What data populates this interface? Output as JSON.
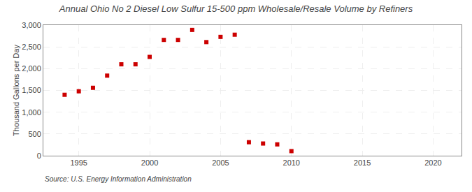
{
  "chart_data": {
    "type": "scatter",
    "title": "Annual Ohio No 2 Diesel Low Sulfur 15-500 ppm Wholesale/Resale Volume by Refiners",
    "ylabel": "Thousand Gallons per Day",
    "annotations": [
      "Source: U.S. Energy Information Administration"
    ],
    "x": [
      1994,
      1995,
      1996,
      1997,
      1998,
      1999,
      2000,
      2001,
      2002,
      2003,
      2004,
      2005,
      2006,
      2007,
      2008,
      2009,
      2010
    ],
    "values": [
      1400,
      1480,
      1560,
      1840,
      2100,
      2100,
      2270,
      2660,
      2660,
      2890,
      2610,
      2730,
      2780,
      310,
      280,
      260,
      105
    ],
    "color": "#cc0000",
    "marker": "square",
    "xlim": [
      1992.5,
      2022
    ],
    "xticks": [
      1995,
      2000,
      2005,
      2010,
      2015,
      2020
    ],
    "ylim": [
      0,
      3000
    ],
    "yticks": [
      0,
      500,
      {
        "value": 1000,
        "label": "1,000"
      },
      {
        "value": 1500,
        "label": "1,500"
      },
      {
        "value": 2000,
        "label": "2,000"
      },
      {
        "value": 2500,
        "label": "2,500"
      },
      {
        "value": 3000,
        "label": "3,000"
      }
    ],
    "grid": true
  }
}
